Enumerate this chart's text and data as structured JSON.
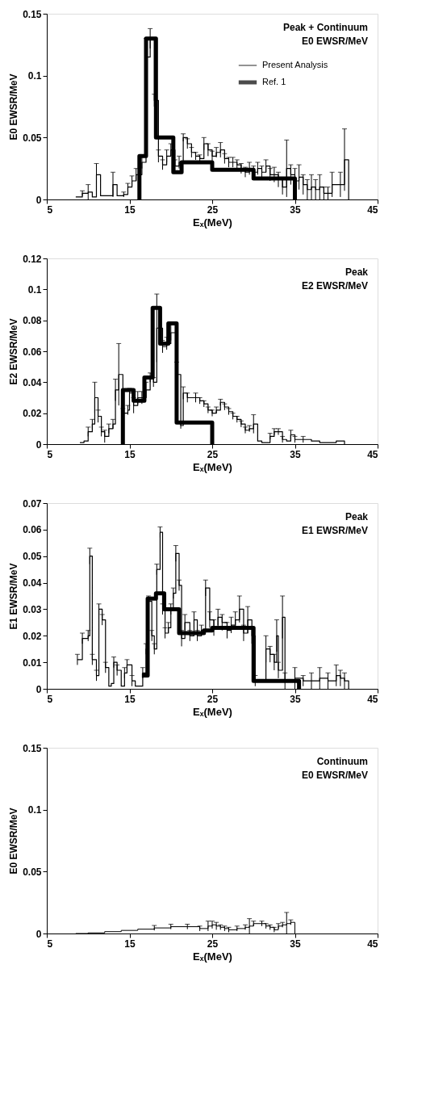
{
  "chart_data": [
    {
      "type": "step",
      "xlabel": "Eₓ(MeV)",
      "ylabel": "E0 EWSR/MeV",
      "annotations": [
        "Peak + Continuum",
        "E0  EWSR/MeV"
      ],
      "xlim": [
        5,
        45
      ],
      "xticks": [
        5,
        15,
        25,
        35,
        45
      ],
      "ylim": [
        0,
        0.15
      ],
      "yticks": [
        0,
        0.05,
        0.1,
        0.15
      ],
      "grid": false,
      "legend": "top right",
      "series": [
        {
          "name": "Present Analysis",
          "color": "#000000",
          "x": [
            8.5,
            9.3,
            10,
            10.5,
            11,
            11.5,
            12.5,
            13,
            13.5,
            14.3,
            14.8,
            15.3,
            15.8,
            16.5,
            17,
            17.5,
            18,
            18.5,
            19,
            19.5,
            20,
            20.5,
            21,
            21.5,
            22,
            22.5,
            23,
            23.5,
            24,
            24.5,
            25,
            25.5,
            26,
            26.5,
            27,
            27.5,
            28,
            28.5,
            29,
            29.5,
            30,
            30.5,
            31,
            31.5,
            32,
            32.5,
            33,
            33.5,
            34,
            34.5,
            35,
            35.5,
            36,
            36.5,
            37,
            37.5,
            38,
            38.5,
            39,
            39.5,
            40.5,
            41,
            41.5
          ],
          "values": [
            0.002,
            0.005,
            0.006,
            0.002,
            0.02,
            0.003,
            0.003,
            0.012,
            0.003,
            0.004,
            0.01,
            0.015,
            0.02,
            0.03,
            0.115,
            0.13,
            0.08,
            0.035,
            0.028,
            0.035,
            0.04,
            0.027,
            0.03,
            0.05,
            0.045,
            0.038,
            0.035,
            0.033,
            0.045,
            0.04,
            0.035,
            0.038,
            0.04,
            0.033,
            0.03,
            0.03,
            0.028,
            0.025,
            0.022,
            0.025,
            0.022,
            0.025,
            0.022,
            0.027,
            0.02,
            0.02,
            0.016,
            0.01,
            0.025,
            0.02,
            0.015,
            0.018,
            0.012,
            0.008,
            0.01,
            0.008,
            0.01,
            0.005,
            0.005,
            0.012,
            0.012,
            0.032,
            0
          ],
          "errors": [
            null,
            0.002,
            0.006,
            null,
            0.009,
            null,
            null,
            0.01,
            null,
            0.002,
            0.003,
            0.004,
            0.005,
            0.005,
            0.015,
            0.008,
            0.005,
            0.005,
            0.004,
            0.005,
            0.005,
            0.005,
            0.005,
            0.003,
            0.004,
            0.004,
            0.003,
            0.003,
            0.005,
            0.005,
            0.004,
            0.004,
            0.006,
            0.004,
            0.004,
            0.004,
            0.004,
            0.004,
            0.004,
            0.005,
            0.005,
            0.005,
            0.005,
            0.005,
            0.005,
            0.006,
            0.006,
            0.006,
            0.023,
            0.008,
            0.01,
            0.01,
            0.008,
            0.008,
            0.01,
            0.008,
            0.01,
            0.005,
            0.005,
            0.01,
            0.01,
            0.025,
            null
          ]
        },
        {
          "name": "Ref. 1",
          "color": "#000000",
          "x": [
            16,
            16.2,
            17,
            18.2,
            20.3,
            21.3,
            25,
            30,
            35
          ],
          "values": [
            0,
            0.035,
            0.13,
            0.05,
            0.022,
            0.03,
            0.024,
            0.017,
            0
          ]
        }
      ]
    },
    {
      "type": "step",
      "xlabel": "Eₓ(MeV)",
      "ylabel": "E2 EWSR/MeV",
      "annotations": [
        "Peak",
        "E2  EWSR/MeV"
      ],
      "xlim": [
        5,
        45
      ],
      "xticks": [
        5,
        15,
        25,
        35,
        45
      ],
      "ylim": [
        0,
        0.12
      ],
      "yticks": [
        0,
        0.02,
        0.04,
        0.06,
        0.08,
        0.1,
        0.12
      ],
      "grid": false,
      "legend": false,
      "series": [
        {
          "color": "#000000",
          "x": [
            9,
            9.5,
            10,
            10.5,
            10.8,
            11.2,
            11.6,
            12,
            12.5,
            13,
            13.3,
            13.7,
            14.2,
            14.8,
            15,
            15.5,
            16,
            16.5,
            17,
            17.5,
            17.9,
            18.3,
            19,
            19.5,
            20,
            20.7,
            21.2,
            21.5,
            22,
            23,
            23.5,
            24,
            24.5,
            25,
            25.5,
            26,
            26.5,
            27,
            27.5,
            28,
            28.5,
            29,
            29.5,
            30,
            30.5,
            31,
            32,
            32.5,
            33,
            33.5,
            34,
            34.5,
            35,
            36,
            37,
            38,
            39,
            40,
            41
          ],
          "values": [
            0.001,
            0.002,
            0.008,
            0.013,
            0.03,
            0.018,
            0.008,
            0.005,
            0.01,
            0.013,
            0.035,
            0.045,
            0.02,
            0.022,
            0.033,
            0.025,
            0.03,
            0.03,
            0.035,
            0.043,
            0.04,
            0.075,
            0.063,
            0.065,
            0.072,
            0.045,
            0.012,
            0.033,
            0.03,
            0.03,
            0.028,
            0.026,
            0.022,
            0.02,
            0.022,
            0.027,
            0.024,
            0.021,
            0.018,
            0.016,
            0.013,
            0.009,
            0.01,
            0.013,
            0.002,
            0.001,
            0.005,
            0.008,
            0.008,
            0.003,
            0.002,
            0.006,
            0.003,
            0.003,
            0.002,
            0.001,
            0.001,
            0.002,
            0
          ],
          "errors": [
            null,
            null,
            0.003,
            0.003,
            0.01,
            0.004,
            0.003,
            0.004,
            0.003,
            0.003,
            0.007,
            0.02,
            0.003,
            0.003,
            0.003,
            0.005,
            0.004,
            0.004,
            0.005,
            0.003,
            0.003,
            0.022,
            0.004,
            0.004,
            0.005,
            0.008,
            0.002,
            0.004,
            0.003,
            0.003,
            0.002,
            0.002,
            0.002,
            0.002,
            0.002,
            0.002,
            0.002,
            0.002,
            0.002,
            0.002,
            0.002,
            0.002,
            0.002,
            0.006,
            null,
            null,
            0.002,
            0.002,
            0.002,
            0.002,
            null,
            0.003,
            0.002,
            0.002,
            null,
            null,
            null,
            null,
            null
          ]
        },
        {
          "color": "#000000",
          "x": [
            14,
            14.2,
            15.5,
            16.8,
            17.8,
            18.7,
            19.7,
            20.7,
            25
          ],
          "values": [
            0,
            0.035,
            0.028,
            0.043,
            0.088,
            0.065,
            0.078,
            0.014,
            0
          ]
        }
      ]
    },
    {
      "type": "step",
      "xlabel": "Eₓ(MeV)",
      "ylabel": "E1 EWSR/MeV",
      "annotations": [
        "Peak",
        "E1  EWSR/MeV"
      ],
      "xlim": [
        5,
        45
      ],
      "xticks": [
        5,
        15,
        25,
        35,
        45
      ],
      "ylim": [
        0,
        0.07
      ],
      "yticks": [
        0,
        0.01,
        0.02,
        0.03,
        0.04,
        0.05,
        0.06,
        0.07
      ],
      "grid": false,
      "legend": false,
      "series": [
        {
          "color": "#000000",
          "x": [
            8.7,
            9.3,
            10,
            10.2,
            10.5,
            11,
            11.3,
            11.7,
            12.1,
            12.5,
            12.8,
            13.1,
            13.5,
            14,
            14.4,
            14.7,
            15.3,
            15.7,
            16.2,
            16.6,
            17,
            17.3,
            17.7,
            18,
            18.3,
            18.7,
            19,
            19.3,
            19.7,
            20,
            20.3,
            20.6,
            21,
            21.3,
            21.7,
            22.3,
            22.8,
            23.2,
            23.7,
            24.2,
            24.7,
            25.2,
            25.7,
            26.2,
            26.8,
            27.3,
            27.8,
            28.3,
            28.8,
            29.3,
            29.8,
            30.2,
            31.5,
            32,
            32.5,
            32.8,
            33,
            33.5,
            33.8,
            35,
            36,
            37,
            38,
            39,
            40,
            40.5,
            41,
            41.5
          ],
          "values": [
            0.011,
            0.019,
            0.02,
            0.05,
            0.011,
            0.005,
            0.03,
            0.026,
            0.008,
            0.001,
            0.002,
            0.01,
            0.007,
            0.001,
            0.006,
            0.009,
            0.003,
            0.001,
            0.001,
            0.006,
            0.015,
            0.033,
            0.02,
            0.015,
            0.045,
            0.059,
            0.03,
            0.021,
            0.023,
            0.03,
            0.036,
            0.051,
            0.039,
            0.019,
            0.025,
            0.02,
            0.026,
            0.02,
            0.022,
            0.038,
            0.026,
            0.023,
            0.027,
            0.025,
            0.022,
            0.024,
            0.026,
            0.03,
            0.021,
            0.026,
            0.02,
            0.003,
            0.015,
            0.013,
            0.01,
            0.02,
            0.007,
            0.027,
            0.003,
            0.004,
            0.003,
            0.003,
            0.004,
            0.003,
            0.005,
            0.004,
            0.003,
            0
          ],
          "errors": [
            0.002,
            0.002,
            0.002,
            0.003,
            0.002,
            0.002,
            0.002,
            0.002,
            0.002,
            null,
            null,
            0.002,
            0.002,
            null,
            0.002,
            0.002,
            0.002,
            null,
            null,
            0.002,
            0.002,
            0.002,
            0.002,
            0.002,
            0.002,
            0.002,
            0.002,
            0.002,
            0.002,
            0.002,
            0.002,
            0.003,
            0.002,
            0.003,
            0.003,
            0.002,
            0.003,
            0.002,
            0.002,
            0.003,
            0.003,
            0.003,
            0.003,
            0.003,
            0.003,
            0.003,
            0.003,
            0.005,
            0.003,
            0.005,
            0.003,
            0.002,
            0.005,
            0.003,
            0.003,
            0.006,
            0.003,
            0.008,
            0.003,
            0.004,
            0.002,
            0.003,
            0.004,
            0.003,
            0.004,
            0.003,
            0.003,
            null
          ]
        },
        {
          "color": "#000000",
          "x": [
            16.5,
            17.2,
            18.2,
            19.2,
            21,
            24,
            25,
            30,
            35.5
          ],
          "values": [
            0.005,
            0.034,
            0.036,
            0.03,
            0.021,
            0.022,
            0.023,
            0.003,
            0
          ]
        }
      ]
    },
    {
      "type": "step",
      "xlabel": "Eₓ(MeV)",
      "ylabel": "E0 EWSR/MeV",
      "annotations": [
        "Continuum",
        "E0  EWSR/MeV"
      ],
      "xlim": [
        5,
        45
      ],
      "xticks": [
        5,
        15,
        25,
        35,
        45
      ],
      "ylim": [
        0,
        0.15
      ],
      "yticks": [
        0,
        0.05,
        0.1,
        0.15
      ],
      "grid": false,
      "legend": false,
      "series": [
        {
          "color": "#000000",
          "x": [
            8.5,
            10,
            12,
            14,
            16,
            18,
            20,
            22,
            23.5,
            24.5,
            25,
            25.5,
            26,
            26.5,
            27,
            28,
            29,
            29.5,
            30,
            31,
            31.5,
            32,
            32.5,
            33,
            33.5,
            34,
            34.5,
            35
          ],
          "values": [
            0,
            0.0005,
            0.0015,
            0.0025,
            0.0035,
            0.0045,
            0.0055,
            0.0055,
            0.004,
            0.006,
            0.007,
            0.006,
            0.005,
            0.004,
            0.003,
            0.004,
            0.005,
            0.006,
            0.008,
            0.008,
            0.006,
            0.005,
            0.003,
            0.006,
            0.007,
            0.008,
            0.009,
            0
          ],
          "errors": [
            null,
            null,
            null,
            null,
            null,
            0.002,
            0.002,
            0.002,
            0.002,
            0.004,
            0.003,
            0.003,
            0.002,
            0.002,
            0.002,
            0.002,
            0.002,
            0.006,
            0.002,
            0.002,
            0.002,
            0.002,
            0.002,
            0.002,
            0.002,
            0.009,
            0.002,
            null
          ]
        }
      ]
    }
  ]
}
